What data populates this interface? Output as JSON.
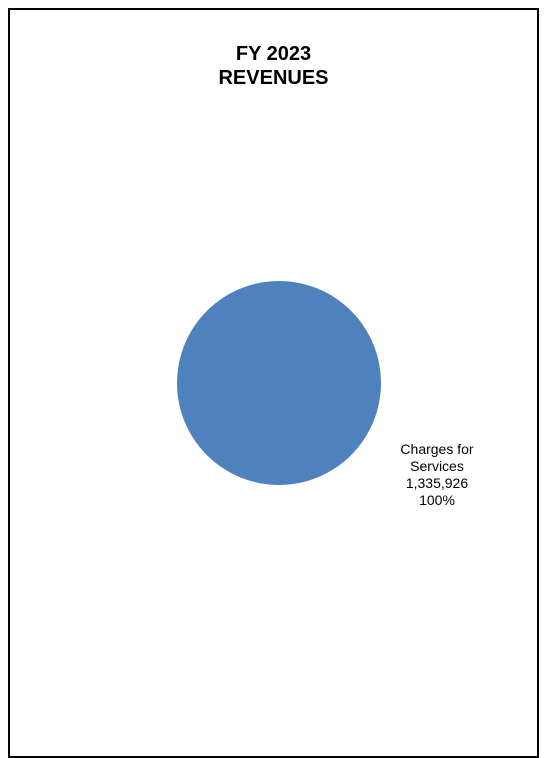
{
  "chart_data": {
    "type": "pie",
    "title": "FY 2023",
    "subtitle": "REVENUES",
    "slices": [
      {
        "label_line1": "Charges for",
        "label_line2": "Services",
        "value": 1335926,
        "value_text": "1,335,926",
        "percent_text": "100%",
        "color": "#4f81bd"
      }
    ]
  }
}
